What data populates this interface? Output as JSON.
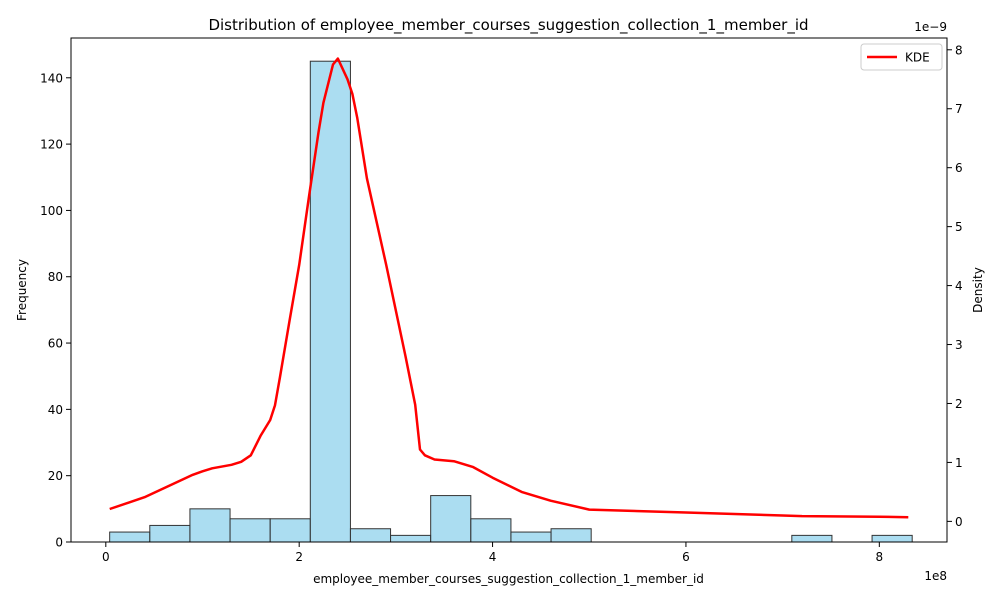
{
  "chart_data": {
    "type": "bar",
    "title": "Distribution of employee_member_courses_suggestion_collection_1_member_id",
    "xlabel": "employee_member_courses_suggestion_collection_1_member_id",
    "ylabel": "Frequency",
    "y2label": "Density",
    "x_offset_text": "1e8",
    "y2_offset_text": "1e−9",
    "xlim": [
      -0.36,
      8.7
    ],
    "ylim": [
      0,
      152
    ],
    "y2lim": [
      -0.35,
      8.2
    ],
    "x_ticks": [
      0,
      2,
      4,
      6,
      8
    ],
    "y_ticks": [
      0,
      20,
      40,
      60,
      80,
      100,
      120,
      140
    ],
    "y2_ticks": [
      0,
      1,
      2,
      3,
      4,
      5,
      6,
      7,
      8
    ],
    "grid": false,
    "legend": {
      "position": "top-right",
      "entries": [
        "KDE"
      ]
    },
    "colors": {
      "bars": "#87ceeb",
      "bar_edge": "#333333",
      "kde": "#ff0000"
    },
    "histogram": {
      "bin_edges": [
        0.04,
        0.455,
        0.87,
        1.285,
        1.7,
        2.115,
        2.53,
        2.945,
        3.36,
        3.775,
        4.19,
        4.605,
        5.02,
        5.435,
        5.85,
        6.265,
        6.68,
        7.095,
        7.51,
        7.925,
        8.34
      ],
      "counts": [
        3,
        5,
        10,
        7,
        7,
        145,
        4,
        2,
        14,
        7,
        3,
        4,
        0,
        0,
        0,
        0,
        0,
        2,
        0,
        2
      ]
    },
    "series": [
      {
        "name": "KDE",
        "x": [
          0.04,
          0.4,
          0.9,
          1.0,
          1.1,
          1.3,
          1.4,
          1.5,
          1.6,
          1.7,
          1.75,
          1.8,
          1.9,
          2.0,
          2.1,
          2.2,
          2.25,
          2.35,
          2.4,
          2.5,
          2.55,
          2.6,
          2.7,
          2.9,
          3.1,
          3.2,
          3.25,
          3.3,
          3.4,
          3.6,
          3.8,
          4.0,
          4.3,
          4.6,
          5.0,
          6.0,
          7.0,
          7.2,
          8.0,
          8.3
        ],
        "y": [
          0.21,
          0.41,
          0.79,
          0.85,
          0.9,
          0.96,
          1.01,
          1.12,
          1.45,
          1.72,
          1.97,
          2.43,
          3.4,
          4.35,
          5.5,
          6.6,
          7.1,
          7.75,
          7.85,
          7.5,
          7.25,
          6.85,
          5.82,
          4.35,
          2.8,
          1.98,
          1.22,
          1.12,
          1.05,
          1.02,
          0.92,
          0.74,
          0.5,
          0.35,
          0.2,
          0.15,
          0.1,
          0.09,
          0.08,
          0.07
        ]
      }
    ]
  }
}
